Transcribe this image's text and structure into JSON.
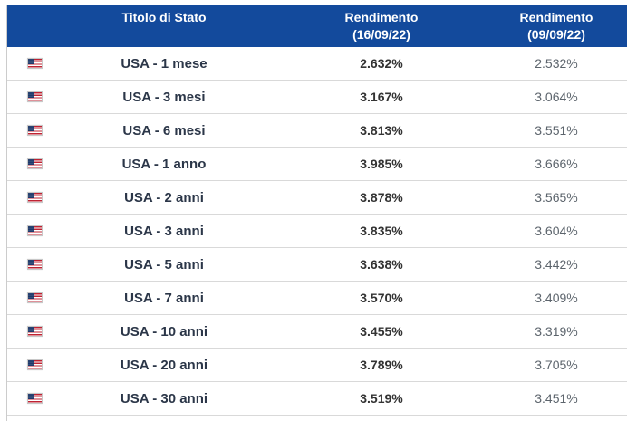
{
  "colors": {
    "header_background": "#134a9c",
    "row_border": "#d9d9d9",
    "instrument_name": "#2b3648",
    "yield_current": "#333333",
    "yield_previous": "#5c646c"
  },
  "header": {
    "title_column": "Titolo di Stato",
    "yield_column_current": {
      "label": "Rendimento",
      "date": "(16/09/22)"
    },
    "yield_column_previous": {
      "label": "Rendimento",
      "date": "(09/09/22)"
    }
  },
  "rows": [
    {
      "flag": "us-flag-icon",
      "name": "USA - 1 mese",
      "yield_current": "2.632%",
      "yield_previous": "2.532%"
    },
    {
      "flag": "us-flag-icon",
      "name": "USA - 3 mesi",
      "yield_current": "3.167%",
      "yield_previous": "3.064%"
    },
    {
      "flag": "us-flag-icon",
      "name": "USA - 6 mesi",
      "yield_current": "3.813%",
      "yield_previous": "3.551%"
    },
    {
      "flag": "us-flag-icon",
      "name": "USA - 1 anno",
      "yield_current": "3.985%",
      "yield_previous": "3.666%"
    },
    {
      "flag": "us-flag-icon",
      "name": "USA - 2 anni",
      "yield_current": "3.878%",
      "yield_previous": "3.565%"
    },
    {
      "flag": "us-flag-icon",
      "name": "USA - 3 anni",
      "yield_current": "3.835%",
      "yield_previous": "3.604%"
    },
    {
      "flag": "us-flag-icon",
      "name": "USA - 5 anni",
      "yield_current": "3.638%",
      "yield_previous": "3.442%"
    },
    {
      "flag": "us-flag-icon",
      "name": "USA - 7 anni",
      "yield_current": "3.570%",
      "yield_previous": "3.409%"
    },
    {
      "flag": "us-flag-icon",
      "name": "USA - 10 anni",
      "yield_current": "3.455%",
      "yield_previous": "3.319%"
    },
    {
      "flag": "us-flag-icon",
      "name": "USA - 20 anni",
      "yield_current": "3.789%",
      "yield_previous": "3.705%"
    },
    {
      "flag": "us-flag-icon",
      "name": "USA - 30 anni",
      "yield_current": "3.519%",
      "yield_previous": "3.451%"
    }
  ]
}
